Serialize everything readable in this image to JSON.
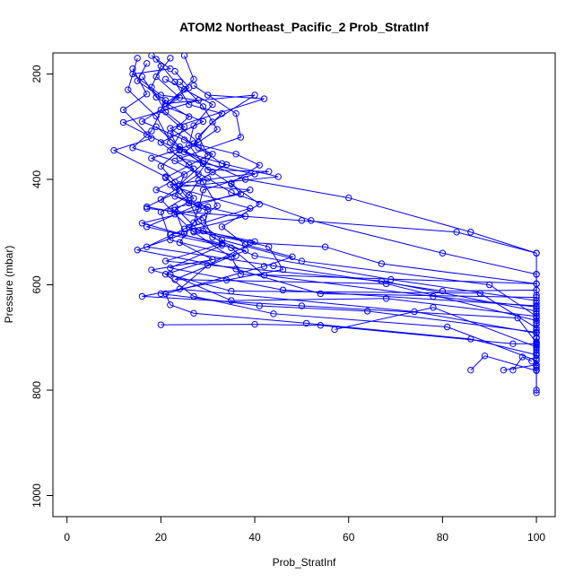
{
  "chart_data": {
    "type": "line",
    "title": "ATOM2 Northeast_Pacific_2 Prob_StratInf",
    "xlabel": "Prob_StratInf",
    "ylabel": "Pressure (mbar)",
    "xlim": [
      -3,
      104
    ],
    "ylim": [
      1040,
      160
    ],
    "y_reversed": true,
    "x_ticks": [
      0,
      20,
      40,
      60,
      80,
      100
    ],
    "y_ticks": [
      200,
      400,
      600,
      800,
      1000
    ],
    "grid": false,
    "legend": "none",
    "marker": "open-circle",
    "series_color": "#0000ff",
    "series": [
      {
        "points": [
          [
            18,
            165
          ],
          [
            22,
            190
          ],
          [
            14,
            200
          ],
          [
            20,
            240
          ],
          [
            28,
            250
          ],
          [
            12,
            292
          ],
          [
            17,
            315
          ],
          [
            24,
            345
          ],
          [
            20,
            375
          ],
          [
            23,
            405
          ],
          [
            26,
            440
          ],
          [
            28,
            480
          ],
          [
            33,
            515
          ],
          [
            50,
            555
          ],
          [
            90,
            600
          ],
          [
            100,
            660
          ],
          [
            100,
            700
          ],
          [
            100,
            730
          ],
          [
            100,
            762
          ],
          [
            100,
            805
          ]
        ]
      },
      {
        "points": [
          [
            15,
            170
          ],
          [
            13,
            230
          ],
          [
            19,
            280
          ],
          [
            22,
            330
          ],
          [
            29,
            365
          ],
          [
            38,
            400
          ],
          [
            60,
            435
          ],
          [
            86,
            500
          ],
          [
            100,
            540
          ],
          [
            100,
            580
          ],
          [
            100,
            635
          ],
          [
            100,
            675
          ],
          [
            100,
            720
          ],
          [
            100,
            758
          ],
          [
            100,
            800
          ]
        ]
      },
      {
        "points": [
          [
            17,
            180
          ],
          [
            15,
            213
          ],
          [
            21,
            250
          ],
          [
            18,
            308
          ],
          [
            14,
            340
          ],
          [
            23,
            365
          ],
          [
            30,
            398
          ],
          [
            35,
            425
          ],
          [
            52,
            478
          ],
          [
            80,
            540
          ],
          [
            100,
            580
          ],
          [
            100,
            620
          ],
          [
            100,
            663
          ],
          [
            100,
            713
          ],
          [
            100,
            755
          ]
        ]
      },
      {
        "points": [
          [
            20,
            185
          ],
          [
            18,
            225
          ],
          [
            21,
            272
          ],
          [
            25,
            300
          ],
          [
            22,
            345
          ],
          [
            27,
            380
          ],
          [
            19,
            420
          ],
          [
            30,
            452
          ],
          [
            16,
            483
          ],
          [
            33,
            525
          ],
          [
            22,
            568
          ],
          [
            46,
            610
          ],
          [
            100,
            640
          ],
          [
            100,
            686
          ],
          [
            100,
            740
          ]
        ]
      },
      {
        "points": [
          [
            14,
            190
          ],
          [
            17,
            238
          ],
          [
            12,
            268
          ],
          [
            18,
            322
          ],
          [
            10,
            345
          ],
          [
            21,
            395
          ],
          [
            24,
            422
          ],
          [
            17,
            452
          ],
          [
            29,
            473
          ],
          [
            31,
            510
          ],
          [
            40,
            545
          ],
          [
            69,
            590
          ],
          [
            100,
            630
          ],
          [
            100,
            672
          ],
          [
            100,
            724
          ]
        ]
      },
      {
        "points": [
          [
            22,
            170
          ],
          [
            19,
            205
          ],
          [
            24,
            245
          ],
          [
            16,
            290
          ],
          [
            25,
            325
          ],
          [
            31,
            352
          ],
          [
            28,
            390
          ],
          [
            20,
            438
          ],
          [
            23,
            466
          ],
          [
            27,
            500
          ],
          [
            35,
            548
          ],
          [
            37,
            580
          ],
          [
            100,
            598
          ],
          [
            100,
            646
          ],
          [
            100,
            708
          ]
        ]
      },
      {
        "points": [
          [
            25,
            165
          ],
          [
            27,
            210
          ],
          [
            21,
            262
          ],
          [
            29,
            290
          ],
          [
            20,
            330
          ],
          [
            26,
            372
          ],
          [
            29,
            405
          ],
          [
            32,
            450
          ],
          [
            25,
            494
          ],
          [
            17,
            528
          ],
          [
            44,
            564
          ],
          [
            80,
            612
          ],
          [
            100,
            610
          ],
          [
            100,
            655
          ],
          [
            100,
            700
          ]
        ]
      },
      {
        "points": [
          [
            19,
            172
          ],
          [
            23,
            215
          ],
          [
            26,
            258
          ],
          [
            33,
            275
          ],
          [
            28,
            318
          ],
          [
            30,
            355
          ],
          [
            21,
            397
          ],
          [
            27,
            436
          ],
          [
            23,
            458
          ],
          [
            25,
            503
          ],
          [
            15,
            534
          ],
          [
            36,
            570
          ],
          [
            54,
            617
          ],
          [
            100,
            624
          ],
          [
            100,
            690
          ]
        ]
      },
      {
        "points": [
          [
            23,
            195
          ],
          [
            26,
            226
          ],
          [
            20,
            268
          ],
          [
            24,
            300
          ],
          [
            28,
            330
          ],
          [
            18,
            360
          ],
          [
            25,
            391
          ],
          [
            23,
            432
          ],
          [
            30,
            460
          ],
          [
            29,
            498
          ],
          [
            35,
            530
          ],
          [
            42,
            582
          ],
          [
            78,
            622
          ],
          [
            100,
            642
          ],
          [
            100,
            702
          ]
        ]
      },
      {
        "points": [
          [
            16,
            205
          ],
          [
            19,
            244
          ],
          [
            26,
            281
          ],
          [
            22,
            313
          ],
          [
            24,
            343
          ],
          [
            29,
            370
          ],
          [
            24,
            410
          ],
          [
            39,
            420
          ],
          [
            28,
            448
          ],
          [
            17,
            490
          ],
          [
            33,
            522
          ],
          [
            21,
            555
          ],
          [
            67,
            593
          ],
          [
            100,
            650
          ],
          [
            100,
            715
          ]
        ]
      },
      {
        "points": [
          [
            21,
            210
          ],
          [
            31,
            258
          ],
          [
            27,
            298
          ],
          [
            26,
            335
          ],
          [
            30,
            382
          ],
          [
            43,
            385
          ],
          [
            22,
            410
          ],
          [
            26,
            445
          ],
          [
            38,
            470
          ],
          [
            22,
            505
          ],
          [
            38,
            535
          ],
          [
            23,
            590
          ],
          [
            68,
            598
          ],
          [
            100,
            668
          ],
          [
            100,
            734
          ]
        ]
      },
      {
        "points": [
          [
            24,
            215
          ],
          [
            29,
            262
          ],
          [
            32,
            305
          ],
          [
            25,
            348
          ],
          [
            34,
            372
          ],
          [
            28,
            402
          ],
          [
            26,
            430
          ],
          [
            20,
            462
          ],
          [
            22,
            515
          ],
          [
            36,
            545
          ],
          [
            18,
            572
          ],
          [
            35,
            612
          ],
          [
            88,
            616
          ],
          [
            100,
            682
          ]
        ]
      },
      {
        "points": [
          [
            27,
            222
          ],
          [
            36,
            275
          ],
          [
            37,
            320
          ],
          [
            24,
            360
          ],
          [
            40,
            390
          ],
          [
            29,
            420
          ],
          [
            28,
            456
          ],
          [
            27,
            482
          ],
          [
            24,
            520
          ],
          [
            31,
            552
          ],
          [
            21,
            580
          ],
          [
            27,
            622
          ],
          [
            44,
            655
          ],
          [
            81,
            680
          ],
          [
            100,
            744
          ]
        ]
      },
      {
        "points": [
          [
            25,
            229
          ],
          [
            21,
            256
          ],
          [
            40,
            240
          ],
          [
            31,
            291
          ],
          [
            27,
            332
          ],
          [
            36,
            352
          ],
          [
            41,
            373
          ],
          [
            35,
            407
          ],
          [
            37,
            428
          ],
          [
            23,
            453
          ],
          [
            28,
            497
          ],
          [
            40,
            518
          ],
          [
            30,
            563
          ],
          [
            24,
            608
          ],
          [
            74,
            651
          ],
          [
            100,
            692
          ]
        ]
      },
      {
        "points": [
          [
            30,
            240
          ],
          [
            42,
            247
          ],
          [
            22,
            303
          ],
          [
            28,
            340
          ],
          [
            33,
            370
          ],
          [
            45,
            395
          ],
          [
            23,
            415
          ],
          [
            39,
            455
          ],
          [
            26,
            491
          ],
          [
            43,
            528
          ],
          [
            46,
            571
          ],
          [
            34,
            591
          ],
          [
            16,
            622
          ],
          [
            50,
            640
          ],
          [
            96,
            663
          ],
          [
            100,
            710
          ],
          [
            100,
            752
          ]
        ]
      },
      {
        "points": [
          [
            19,
            300
          ],
          [
            24,
            338
          ],
          [
            31,
            386
          ],
          [
            35,
            409
          ],
          [
            41,
            447
          ],
          [
            33,
            490
          ],
          [
            38,
            524
          ],
          [
            48,
            547
          ],
          [
            42,
            565
          ],
          [
            21,
            617
          ],
          [
            22,
            638
          ],
          [
            27,
            654
          ],
          [
            51,
            673
          ],
          [
            86,
            703
          ],
          [
            100,
            733
          ]
        ]
      },
      {
        "points": [
          [
            17,
            455
          ],
          [
            22,
            460
          ],
          [
            50,
            478
          ],
          [
            83,
            500
          ],
          [
            100,
            540
          ]
        ]
      },
      {
        "points": [
          [
            27,
            498
          ],
          [
            39,
            520
          ],
          [
            55,
            528
          ],
          [
            67,
            560
          ],
          [
            100,
            598
          ]
        ]
      },
      {
        "points": [
          [
            22,
            580
          ],
          [
            35,
            630
          ],
          [
            68,
            626
          ],
          [
            100,
            660
          ]
        ]
      },
      {
        "points": [
          [
            20,
            617
          ],
          [
            41,
            640
          ],
          [
            64,
            650
          ],
          [
            100,
            690
          ]
        ]
      },
      {
        "points": [
          [
            20,
            676
          ],
          [
            40,
            675
          ],
          [
            54,
            677
          ],
          [
            95,
            712
          ],
          [
            100,
            712
          ]
        ]
      },
      {
        "points": [
          [
            57,
            685
          ],
          [
            78,
            643
          ],
          [
            100,
            718
          ]
        ]
      },
      {
        "points": [
          [
            86,
            762
          ],
          [
            89,
            735
          ],
          [
            100,
            763
          ]
        ]
      },
      {
        "points": [
          [
            95,
            762
          ],
          [
            97,
            737
          ],
          [
            99,
            745
          ]
        ]
      },
      {
        "points": [
          [
            93,
            762
          ],
          [
            100,
            752
          ]
        ]
      }
    ]
  }
}
